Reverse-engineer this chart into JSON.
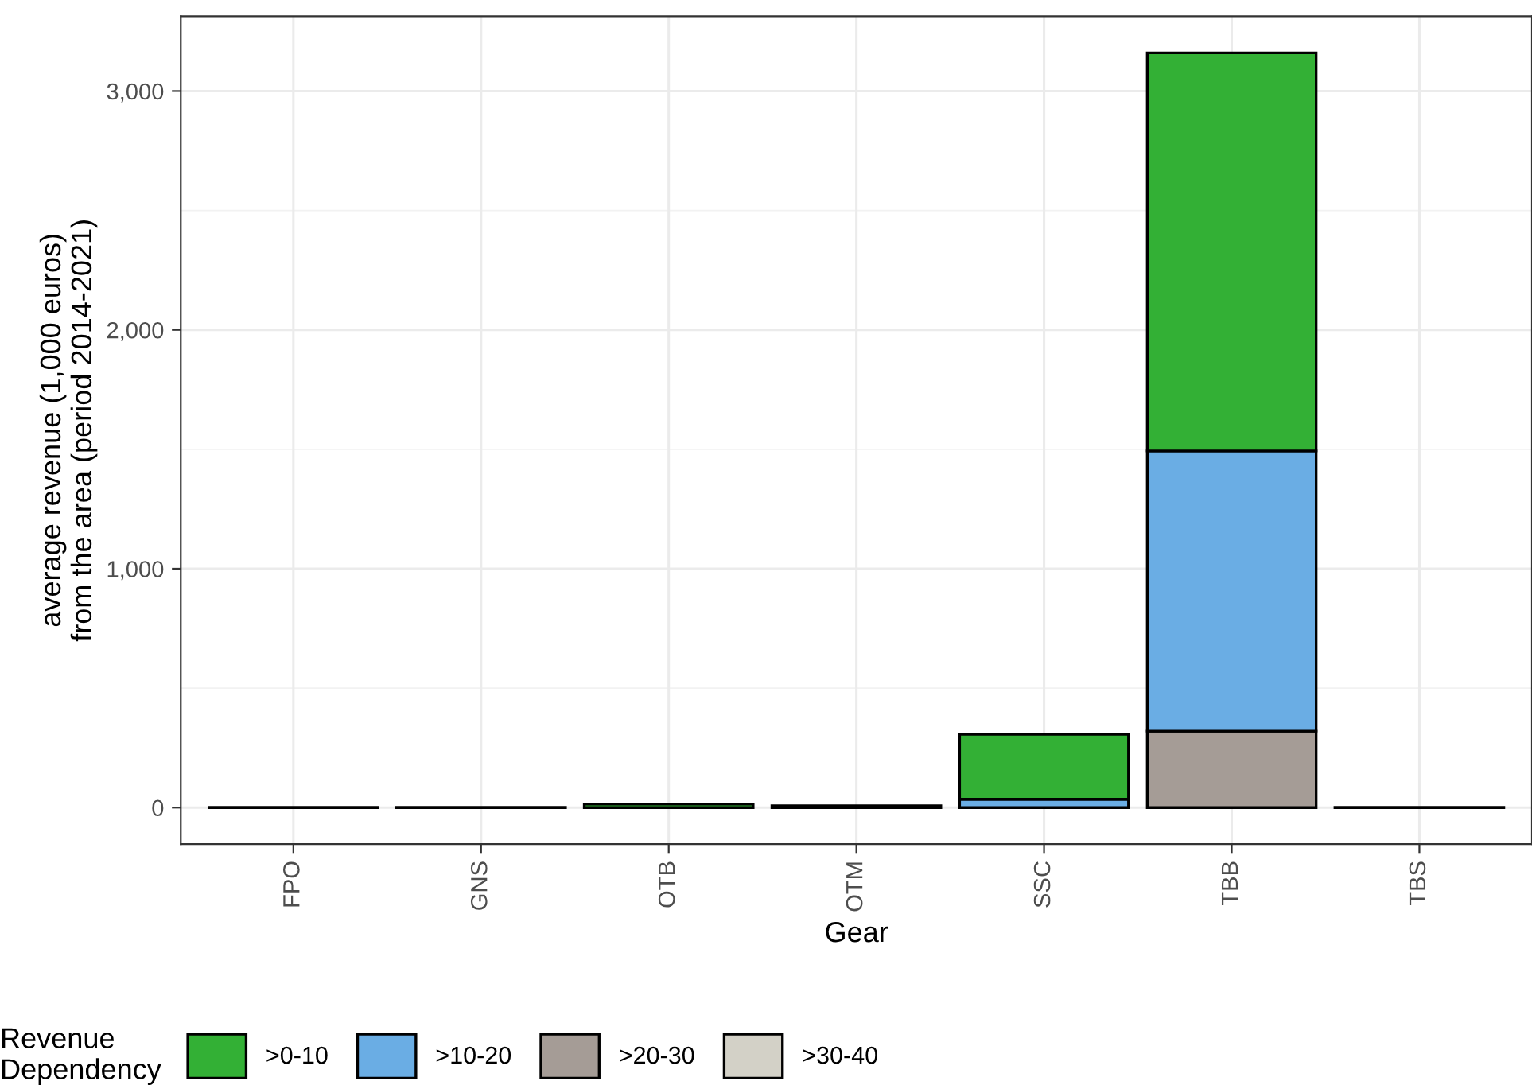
{
  "chart_data": {
    "type": "bar",
    "stacked": true,
    "xlabel": "Gear",
    "ylabel": "average revenue (1,000 euros)\nfrom the area (period 2014-2021)",
    "legend_title": "Revenue\nDependency",
    "legend": "bottom",
    "grid": true,
    "categories": [
      "FPO",
      "GNS",
      "OTB",
      "OTM",
      "SSC",
      "TBB",
      "TBS"
    ],
    "ylim": [
      -153,
      3313
    ],
    "yticks": [
      {
        "value": 0,
        "label": "0"
      },
      {
        "value": 1000,
        "label": "1,000"
      },
      {
        "value": 2000,
        "label": "2,000"
      },
      {
        "value": 3000,
        "label": "3,000"
      }
    ],
    "series": [
      {
        "name": ">30-40",
        "color": "#d3d1c7",
        "values": [
          null,
          null,
          null,
          null,
          null,
          null,
          null
        ]
      },
      {
        "name": ">20-30",
        "color": "#a59c96",
        "values": [
          null,
          null,
          null,
          null,
          null,
          320,
          null
        ]
      },
      {
        "name": ">10-20",
        "color": "#6aade4",
        "values": [
          null,
          null,
          null,
          null,
          35,
          1173,
          null
        ]
      },
      {
        "name": ">0-10",
        "color": "#33b035",
        "values": [
          1,
          1,
          15,
          8,
          272,
          1667,
          1
        ]
      }
    ]
  }
}
